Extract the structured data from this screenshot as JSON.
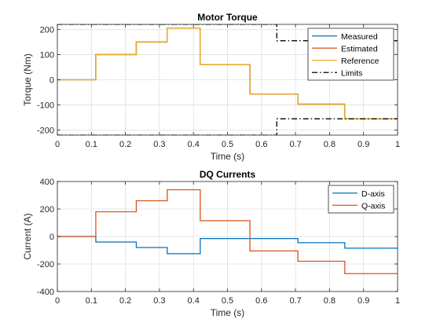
{
  "figure": {
    "background": "#ffffff"
  },
  "chart_data": [
    {
      "type": "line",
      "title": "Motor Torque",
      "xlabel": "Time (s)",
      "ylabel": "Torque (Nm)",
      "xlim": [
        0,
        1
      ],
      "ylim": [
        -220,
        220
      ],
      "xticks": [
        0,
        0.1,
        0.2,
        0.3,
        0.4,
        0.5,
        0.6,
        0.7,
        0.8,
        0.9,
        1
      ],
      "xtick_labels": [
        "0",
        "0.1",
        "0.2",
        "0.3",
        "0.4",
        "0.5",
        "0.6",
        "0.7",
        "0.8",
        "0.9",
        "1"
      ],
      "yticks": [
        -200,
        -100,
        0,
        100,
        200
      ],
      "ytick_labels": [
        "-200",
        "-100",
        "0",
        "100",
        "200"
      ],
      "grid": true,
      "legend_position": "top-right",
      "series": [
        {
          "name": "Measured",
          "color": "#0072BD",
          "style": "solid",
          "x": [
            0,
            0.113,
            0.113,
            0.232,
            0.232,
            0.323,
            0.323,
            0.42,
            0.42,
            0.566,
            0.566,
            0.707,
            0.707,
            0.845,
            0.845,
            1
          ],
          "y": [
            0,
            0,
            100,
            100,
            150,
            150,
            205,
            205,
            60,
            60,
            -57,
            -57,
            -97,
            -97,
            -155,
            -155
          ]
        },
        {
          "name": "Estimated",
          "color": "#D95319",
          "style": "solid",
          "x": [
            0,
            0.113,
            0.113,
            0.232,
            0.232,
            0.323,
            0.323,
            0.42,
            0.42,
            0.566,
            0.566,
            0.707,
            0.707,
            0.845,
            0.845,
            1
          ],
          "y": [
            0,
            0,
            100,
            100,
            150,
            150,
            205,
            205,
            60,
            60,
            -57,
            -57,
            -97,
            -97,
            -155,
            -155
          ]
        },
        {
          "name": "Reference",
          "color": "#EDB120",
          "style": "solid",
          "x": [
            0,
            0.113,
            0.113,
            0.232,
            0.232,
            0.323,
            0.323,
            0.42,
            0.42,
            0.566,
            0.566,
            0.707,
            0.707,
            0.845,
            0.845,
            1
          ],
          "y": [
            0,
            0,
            100,
            100,
            150,
            150,
            205,
            205,
            60,
            60,
            -57,
            -57,
            -97,
            -97,
            -155,
            -155
          ]
        },
        {
          "name": "Limits",
          "color": "#000000",
          "style": "dashdot",
          "x": [
            0,
            0.645,
            0.645,
            1
          ],
          "y": [
            220,
            220,
            155,
            155
          ]
        },
        {
          "color": "#000000",
          "style": "dashdot",
          "x": [
            0,
            0.645,
            0.645,
            1
          ],
          "y": [
            -220,
            -220,
            -155,
            -155
          ]
        }
      ]
    },
    {
      "type": "line",
      "title": "DQ Currents",
      "xlabel": "Time (s)",
      "ylabel": "Current (A)",
      "xlim": [
        0,
        1
      ],
      "ylim": [
        -400,
        400
      ],
      "xticks": [
        0,
        0.1,
        0.2,
        0.3,
        0.4,
        0.5,
        0.6,
        0.7,
        0.8,
        0.9,
        1
      ],
      "xtick_labels": [
        "0",
        "0.1",
        "0.2",
        "0.3",
        "0.4",
        "0.5",
        "0.6",
        "0.7",
        "0.8",
        "0.9",
        "1"
      ],
      "yticks": [
        -400,
        -200,
        0,
        200,
        400
      ],
      "ytick_labels": [
        "-400",
        "-200",
        "0",
        "200",
        "400"
      ],
      "grid": true,
      "legend_position": "top-right",
      "series": [
        {
          "name": "D-axis",
          "color": "#0072BD",
          "style": "solid",
          "x": [
            0,
            0.113,
            0.113,
            0.232,
            0.232,
            0.323,
            0.323,
            0.42,
            0.42,
            0.566,
            0.566,
            0.707,
            0.707,
            0.845,
            0.845,
            1
          ],
          "y": [
            0,
            0,
            -40,
            -40,
            -80,
            -80,
            -125,
            -125,
            -15,
            -15,
            -15,
            -15,
            -45,
            -45,
            -85,
            -85
          ]
        },
        {
          "name": "Q-axis",
          "color": "#D95319",
          "style": "solid",
          "x": [
            0,
            0.113,
            0.113,
            0.232,
            0.232,
            0.323,
            0.323,
            0.42,
            0.42,
            0.566,
            0.566,
            0.707,
            0.707,
            0.845,
            0.845,
            1
          ],
          "y": [
            0,
            0,
            180,
            180,
            260,
            260,
            340,
            340,
            115,
            115,
            -105,
            -105,
            -180,
            -180,
            -270,
            -270
          ]
        }
      ]
    }
  ]
}
